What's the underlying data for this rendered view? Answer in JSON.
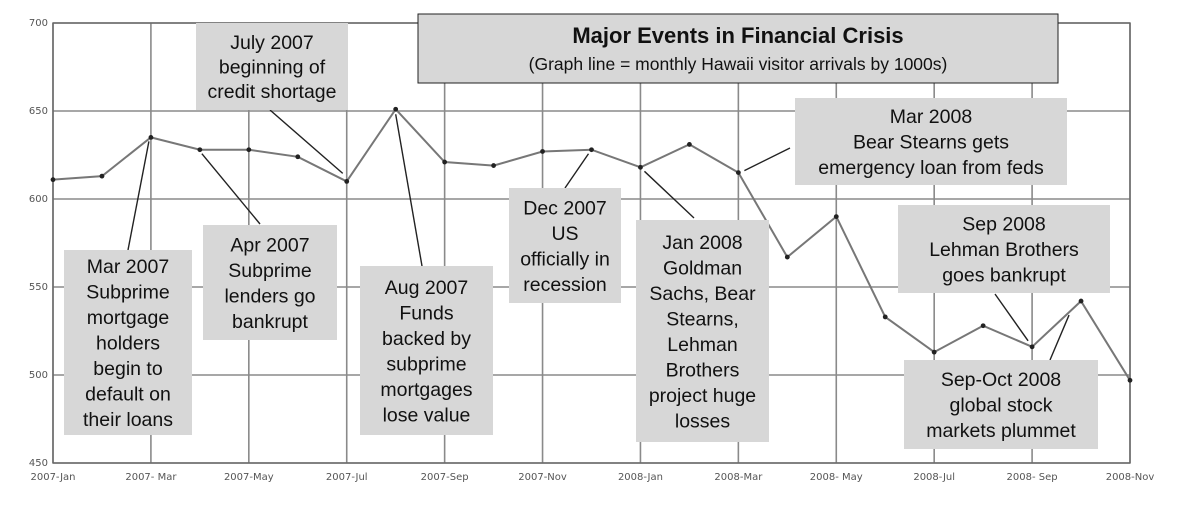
{
  "chart_data": {
    "type": "line",
    "title": "Major Events in Financial Crisis",
    "subtitle": "(Graph line = monthly Hawaii visitor arrivals by 1000s)",
    "xlabel": "",
    "ylabel": "",
    "ylim": [
      450,
      700
    ],
    "y_ticks": [
      450,
      500,
      550,
      600,
      650,
      700
    ],
    "x_tick_labels": [
      "2007-Jan",
      "2007- Mar",
      "2007-May",
      "2007-Jul",
      "2007-Sep",
      "2007-Nov",
      "2008-Jan",
      "2008-Mar",
      "2008- May",
      "2008-Jul",
      "2008- Sep",
      "2008-Nov"
    ],
    "grid": true,
    "series": [
      {
        "name": "",
        "color": "#777777",
        "values": [
          611,
          613,
          635,
          628,
          628,
          624,
          610,
          651,
          621,
          619,
          627,
          628,
          618,
          631,
          615,
          567,
          590,
          533,
          513,
          528,
          516,
          542,
          497
        ]
      }
    ],
    "annotations": [
      {
        "id": "jul2007",
        "lines": [
          "July 2007",
          "beginning of",
          "credit shortage"
        ]
      },
      {
        "id": "mar2007",
        "lines": [
          "Mar 2007",
          "Subprime",
          "mortgage",
          "holders",
          "begin to",
          "default on",
          "their loans"
        ]
      },
      {
        "id": "apr2007",
        "lines": [
          "Apr 2007",
          "Subprime",
          "lenders go",
          "bankrupt"
        ]
      },
      {
        "id": "aug2007",
        "lines": [
          "Aug 2007",
          "Funds",
          "backed by",
          "subprime",
          "mortgages",
          "lose value"
        ]
      },
      {
        "id": "dec2007",
        "lines": [
          "Dec 2007",
          "US",
          "officially in",
          "recession"
        ]
      },
      {
        "id": "jan2008",
        "lines": [
          "Jan 2008",
          "Goldman",
          "Sachs, Bear",
          "Stearns,",
          "Lehman",
          "Brothers",
          "project huge",
          "losses"
        ]
      },
      {
        "id": "mar2008",
        "lines": [
          "Mar 2008",
          "Bear Stearns gets",
          "emergency loan from feds"
        ]
      },
      {
        "id": "sep2008",
        "lines": [
          "Sep 2008",
          "Lehman Brothers",
          "goes bankrupt"
        ]
      },
      {
        "id": "sepoct2008",
        "lines": [
          "Sep-Oct 2008",
          "global stock",
          "markets plummet"
        ]
      }
    ]
  }
}
